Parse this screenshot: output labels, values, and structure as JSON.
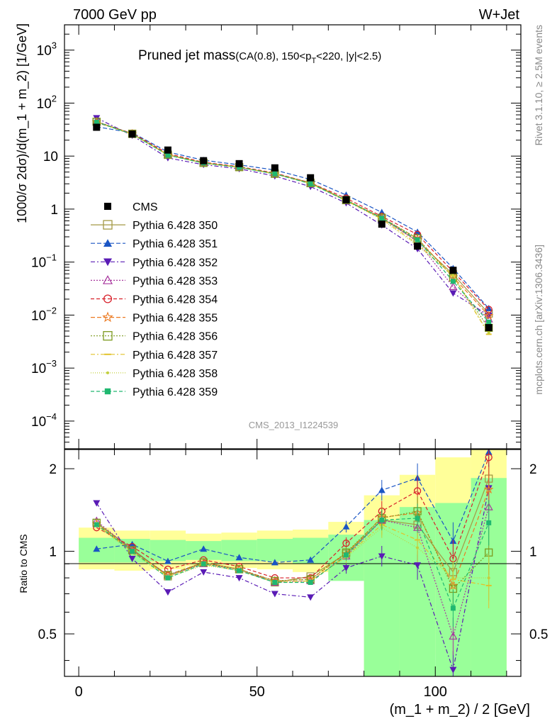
{
  "header": {
    "left": "7000 GeV pp",
    "right": "W+Jet"
  },
  "title": {
    "main": "Pruned jet mass",
    "detail_prefix": "(CA(0.8), 150<p",
    "detail_sub": "T",
    "detail_suffix": "<220, |y|<2.5)"
  },
  "side_labels": {
    "rivet": "Rivet 3.1.10, ≥ 2.5M events",
    "mcplots": "mcplots.cern.ch [arXiv:1306.3436]"
  },
  "watermark": "CMS_2013_I1224539",
  "axes": {
    "main_ylabel": "1000/σ 2dσ)/d(m_1 + m_2) [1/GeV]",
    "ratio_ylabel": "Ratio to CMS",
    "xlabel": "(m_1 + m_2) / 2 [GeV]",
    "x_ticks": [
      "0",
      "50",
      "100"
    ],
    "main_yticks": [
      {
        "base": "10",
        "exp": "3",
        "v": 1000
      },
      {
        "base": "10",
        "exp": "2",
        "v": 100
      },
      {
        "base": "10",
        "exp": "",
        "v": 10
      },
      {
        "base": "1",
        "exp": "",
        "v": 1
      },
      {
        "base": "10",
        "exp": "−1",
        "v": 0.1
      },
      {
        "base": "10",
        "exp": "−2",
        "v": 0.01
      },
      {
        "base": "10",
        "exp": "−3",
        "v": 0.001
      },
      {
        "base": "10",
        "exp": "−4",
        "v": 0.0001
      }
    ],
    "ratio_yticks": [
      {
        "label": "0.5",
        "v": 0.5
      },
      {
        "label": "1",
        "v": 1
      },
      {
        "label": "2",
        "v": 2
      }
    ]
  },
  "chart_data": {
    "type": "scatter",
    "x_edges": [
      0,
      10,
      20,
      30,
      40,
      50,
      60,
      70,
      80,
      90,
      100,
      110,
      120
    ],
    "x": [
      5,
      15,
      25,
      35,
      45,
      55,
      65,
      75,
      85,
      95,
      105,
      115
    ],
    "xlim": [
      -4,
      124
    ],
    "main_ylim": [
      3e-05,
      3000
    ],
    "main_yscale": "log",
    "ratio_ylim": [
      0.35,
      2.35
    ],
    "ratio_yscale": "log",
    "data": {
      "name": "CMS",
      "values": [
        35,
        26,
        13,
        8.2,
        7.2,
        6.0,
        3.9,
        1.5,
        0.52,
        0.2,
        0.07,
        0.0058
      ]
    },
    "band_yellow": [
      [
        0.86,
        1.22
      ],
      [
        0.85,
        1.19
      ],
      [
        0.86,
        1.19
      ],
      [
        0.88,
        1.16
      ],
      [
        0.87,
        1.17
      ],
      [
        0.86,
        1.19
      ],
      [
        0.84,
        1.2
      ],
      [
        0.82,
        1.28
      ],
      [
        0.35,
        1.6
      ],
      [
        0.5,
        1.9
      ],
      [
        0.42,
        2.2
      ],
      [
        0.3,
        2.4
      ]
    ],
    "band_green": [
      [
        0.91,
        1.12
      ],
      [
        0.91,
        1.11
      ],
      [
        0.92,
        1.1
      ],
      [
        0.93,
        1.09
      ],
      [
        0.92,
        1.1
      ],
      [
        0.92,
        1.11
      ],
      [
        0.9,
        1.12
      ],
      [
        0.78,
        1.15
      ],
      [
        0.35,
        1.3
      ],
      [
        0.35,
        1.45
      ],
      [
        0.35,
        1.5
      ],
      [
        0.35,
        1.85
      ]
    ],
    "series": [
      {
        "name": "Pythia 6.428 350",
        "color": "#a39945",
        "marker": "square-open",
        "dash": "",
        "ratio": [
          1.27,
          1.02,
          0.81,
          0.91,
          0.86,
          0.77,
          0.81,
          0.98,
          1.3,
          1.25,
          0.84,
          1.84
        ]
      },
      {
        "name": "Pythia 6.428 351",
        "color": "#1a55c4",
        "marker": "triangle-up",
        "dash": "6,3",
        "ratio": [
          1.02,
          1.06,
          0.92,
          1.02,
          0.95,
          0.91,
          0.93,
          1.23,
          1.67,
          1.85,
          1.09,
          2.3
        ]
      },
      {
        "name": "Pythia 6.428 352",
        "color": "#5a1bb5",
        "marker": "triangle-down",
        "dash": "6,3,2,3",
        "ratio": [
          1.5,
          0.94,
          0.71,
          0.84,
          0.8,
          0.7,
          0.68,
          0.87,
          0.96,
          0.89,
          0.37,
          1.7
        ]
      },
      {
        "name": "Pythia 6.428 353",
        "color": "#a8369e",
        "marker": "triangle-open",
        "dash": "2,2",
        "ratio": [
          1.29,
          1.01,
          0.82,
          0.9,
          0.86,
          0.77,
          0.78,
          0.96,
          1.3,
          1.22,
          0.49,
          1.45
        ]
      },
      {
        "name": "Pythia 6.428 354",
        "color": "#d8202a",
        "marker": "circle-open",
        "dash": "5,3",
        "ratio": [
          1.22,
          1.04,
          0.86,
          0.93,
          0.88,
          0.8,
          0.8,
          1.07,
          1.4,
          1.66,
          0.94,
          2.2
        ]
      },
      {
        "name": "Pythia 6.428 355",
        "color": "#ec7a22",
        "marker": "star-open",
        "dash": "6,3",
        "ratio": [
          1.26,
          1.0,
          0.82,
          0.91,
          0.86,
          0.78,
          0.79,
          0.98,
          1.33,
          1.38,
          0.75,
          1.68
        ]
      },
      {
        "name": "Pythia 6.428 356",
        "color": "#7d9a1f",
        "marker": "square-open",
        "dash": "2,2",
        "ratio": [
          1.27,
          1.01,
          0.82,
          0.91,
          0.86,
          0.78,
          0.79,
          0.99,
          1.32,
          1.4,
          0.73,
          0.99
        ]
      },
      {
        "name": "Pythia 6.428 357",
        "color": "#e2c22a",
        "marker": "tick",
        "dash": "6,3,2,3",
        "ratio": [
          1.25,
          1.0,
          0.81,
          0.9,
          0.85,
          0.77,
          0.78,
          0.96,
          1.25,
          1.1,
          0.79,
          0.75
        ]
      },
      {
        "name": "Pythia 6.428 358",
        "color": "#c2cf3c",
        "marker": "dot",
        "dash": "1,2",
        "ratio": [
          1.24,
          0.99,
          0.8,
          0.89,
          0.85,
          0.77,
          0.78,
          0.95,
          1.22,
          1.03,
          0.8,
          0.8
        ]
      },
      {
        "name": "Pythia 6.428 359",
        "color": "#20b870",
        "marker": "square-fill",
        "dash": "5,3",
        "ratio": [
          1.25,
          1.0,
          0.8,
          0.9,
          0.85,
          0.77,
          0.77,
          0.97,
          1.3,
          1.32,
          0.62,
          1.27
        ]
      }
    ]
  }
}
